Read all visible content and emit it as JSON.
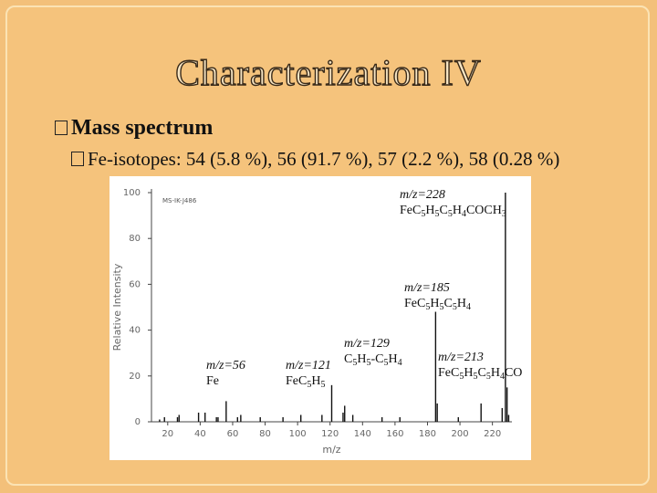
{
  "slide": {
    "title": "Characterization IV",
    "bullet1": "Mass spectrum",
    "bullet2": "Fe-isotopes: 54 (5.8 %), 56 (91.7 %), 57 (2.2 %), 58 (0.28 %)"
  },
  "chart_data": {
    "type": "bar",
    "sample_id": "MS-IK-J486",
    "xlabel": "m/z",
    "ylabel": "Relative Intensity",
    "xlim": [
      10,
      232
    ],
    "ylim": [
      0,
      100
    ],
    "xticks": [
      20,
      40,
      60,
      80,
      100,
      120,
      140,
      160,
      180,
      200,
      220
    ],
    "yticks": [
      0,
      20,
      40,
      60,
      80,
      100
    ],
    "peaks": [
      {
        "x": 15,
        "y": 1
      },
      {
        "x": 18,
        "y": 2
      },
      {
        "x": 26,
        "y": 2
      },
      {
        "x": 27,
        "y": 3
      },
      {
        "x": 39,
        "y": 4
      },
      {
        "x": 43,
        "y": 4
      },
      {
        "x": 50,
        "y": 2
      },
      {
        "x": 51,
        "y": 2
      },
      {
        "x": 56,
        "y": 9
      },
      {
        "x": 63,
        "y": 2
      },
      {
        "x": 65,
        "y": 3
      },
      {
        "x": 77,
        "y": 2
      },
      {
        "x": 91,
        "y": 2
      },
      {
        "x": 102,
        "y": 3
      },
      {
        "x": 115,
        "y": 3
      },
      {
        "x": 121,
        "y": 16
      },
      {
        "x": 128,
        "y": 4
      },
      {
        "x": 129,
        "y": 7
      },
      {
        "x": 134,
        "y": 3
      },
      {
        "x": 152,
        "y": 2
      },
      {
        "x": 163,
        "y": 2
      },
      {
        "x": 185,
        "y": 48
      },
      {
        "x": 186,
        "y": 8
      },
      {
        "x": 199,
        "y": 2
      },
      {
        "x": 213,
        "y": 8
      },
      {
        "x": 226,
        "y": 6
      },
      {
        "x": 228,
        "y": 100
      },
      {
        "x": 229,
        "y": 15
      },
      {
        "x": 230,
        "y": 3
      }
    ],
    "annotations": [
      {
        "mz": "m/z=228",
        "formula": [
          "Fe",
          "C",
          "5",
          "H",
          "5",
          "C",
          "5",
          "H",
          "4",
          "COCH",
          "3"
        ]
      },
      {
        "mz": "m/z=185",
        "formula": [
          "Fe",
          "C",
          "5",
          "H",
          "5",
          "C",
          "5",
          "H",
          "4"
        ]
      },
      {
        "mz": "m/z=129",
        "formula": [
          "C",
          "5",
          "H",
          "5",
          "-C",
          "5",
          "H",
          "4"
        ]
      },
      {
        "mz": "m/z=213",
        "formula": [
          "Fe",
          "C",
          "5",
          "H",
          "5",
          "C",
          "5",
          "H",
          "4",
          "CO"
        ]
      },
      {
        "mz": "m/z=121",
        "formula": [
          "Fe",
          "C",
          "5",
          "H",
          "5"
        ]
      },
      {
        "mz": "m/z=56",
        "formula": [
          "Fe"
        ]
      }
    ]
  }
}
